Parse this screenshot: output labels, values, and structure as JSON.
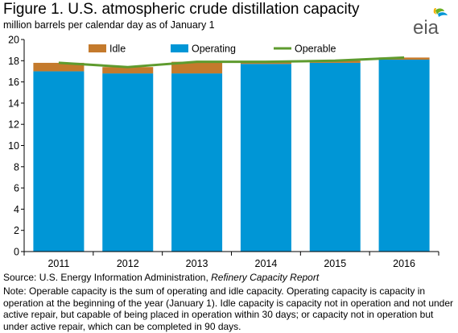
{
  "header": {
    "title": "Figure 1. U.S. atmospheric crude distillation capacity",
    "subtitle": "million barrels per calendar day as of January 1",
    "logo_text": "eia"
  },
  "colors": {
    "idle": "#c47a2c",
    "operating": "#0096d6",
    "operable": "#5e9b2e",
    "logo_text": "#5a5a5a",
    "logo_leaf_green": "#6ab023",
    "logo_leaf_blue": "#0096d6",
    "logo_leaf_yellow": "#f5b000"
  },
  "chart_data": {
    "type": "bar",
    "stacked": true,
    "categories": [
      "2011",
      "2012",
      "2013",
      "2014",
      "2015",
      "2016"
    ],
    "series": [
      {
        "name": "Idle",
        "kind": "bar",
        "values": [
          0.8,
          0.6,
          1.1,
          0.2,
          0.2,
          0.2
        ]
      },
      {
        "name": "Operating",
        "kind": "bar",
        "values": [
          17.0,
          16.8,
          16.8,
          17.7,
          17.8,
          18.1
        ]
      },
      {
        "name": "Operable",
        "kind": "line",
        "values": [
          17.8,
          17.4,
          17.9,
          17.9,
          18.0,
          18.3
        ]
      }
    ],
    "legend_order": [
      "Idle",
      "Operating",
      "Operable"
    ],
    "legend_position": "top",
    "ylim": [
      0,
      20
    ],
    "yticks": [
      0,
      2,
      4,
      6,
      8,
      10,
      12,
      14,
      16,
      18,
      20
    ],
    "grid": false
  },
  "footer": {
    "source_prefix": "Source: U.S. Energy Information Administration, ",
    "source_report": "Refinery Capacity Report",
    "note": "Note: Operable capacity is the sum of operating and idle capacity. Operating capacity is capacity in operation at the beginning of the year (January 1). Idle capacity is capacity not in operation and not under active repair, but capable of being placed in operation within 30 days; or capacity not in operation but under active repair, which can be completed in 90 days."
  }
}
